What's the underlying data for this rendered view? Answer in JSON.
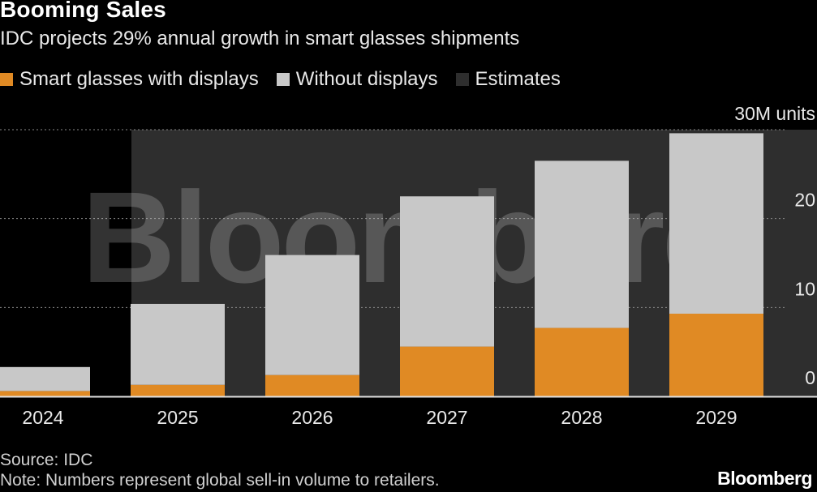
{
  "header": {
    "title": "Booming Sales",
    "subtitle": "IDC projects 29% annual growth in smart glasses shipments"
  },
  "legend": [
    {
      "label": "Smart glasses with displays",
      "color": "#E08A24"
    },
    {
      "label": "Without displays",
      "color": "#C8C8C8"
    },
    {
      "label": "Estimates",
      "color": "#2E2E2E"
    }
  ],
  "footer": {
    "source": "Source: IDC",
    "note": "Note: Numbers represent global sell-in volume to retailers.",
    "brand": "Bloomberg"
  },
  "watermark": "Bloomberg",
  "chart_data": {
    "type": "bar",
    "stacked": true,
    "title": "Booming Sales",
    "subtitle": "IDC projects 29% annual growth in smart glasses shipments",
    "categories": [
      "2024",
      "2025",
      "2026",
      "2027",
      "2028",
      "2029"
    ],
    "series": [
      {
        "name": "Smart glasses with displays",
        "color": "#E08A24",
        "values": [
          0.6,
          1.3,
          2.4,
          5.6,
          7.7,
          9.3
        ]
      },
      {
        "name": "Without displays",
        "color": "#C8C8C8",
        "values": [
          2.7,
          9.1,
          13.5,
          16.9,
          18.8,
          20.3
        ]
      }
    ],
    "estimate_start": "2025",
    "estimate_label": "Estimates",
    "ylim": [
      0,
      30
    ],
    "yticks": [
      {
        "value": 0,
        "label": "0"
      },
      {
        "value": 10,
        "label": "10"
      },
      {
        "value": 20,
        "label": "20"
      },
      {
        "value": 30,
        "label": "30M units"
      }
    ],
    "xlabel": "",
    "ylabel": "",
    "grid": true,
    "legend_position": "top-left"
  }
}
